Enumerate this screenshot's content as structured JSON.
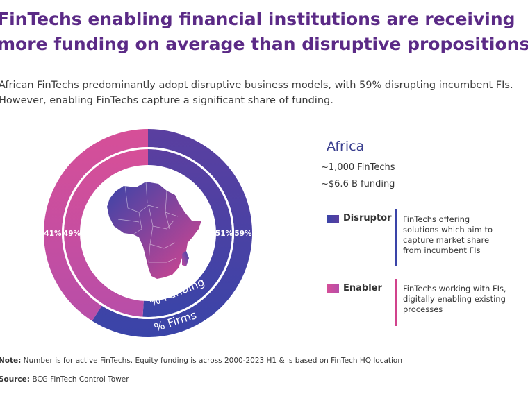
{
  "title_line1": "FinTechs enabling financial institutions are receiving",
  "title_line2": "more funding on average than disruptive propositions",
  "subtitle_line1": "African FinTechs predominantly adopt disruptive business models, with 59% disrupting incumbent FIs.",
  "subtitle_line2": "However, enabling FinTechs capture a significant share of funding.",
  "colors": {
    "title": "#5b2a86",
    "disruptor": "#3b3fa6",
    "enabler": "#d1438c",
    "disruptor_mid": "#6a3f9f"
  },
  "chart_data": {
    "type": "donut",
    "rings": [
      {
        "name": "% Firms",
        "ring": "outer",
        "slices": [
          {
            "series": "Disruptor",
            "value": 59,
            "label": "59%"
          },
          {
            "series": "Enabler",
            "value": 41,
            "label": "41%"
          }
        ]
      },
      {
        "name": "% Funding",
        "ring": "inner",
        "slices": [
          {
            "series": "Disruptor",
            "value": 51,
            "label": "51%"
          },
          {
            "series": "Enabler",
            "value": 49,
            "label": "49%"
          }
        ]
      }
    ],
    "center": "map-of-africa",
    "legend_placement": "right"
  },
  "legend": {
    "heading": "Africa",
    "stat1": "~1,000 FinTechs",
    "stat2": "~$6.6 B funding",
    "items": [
      {
        "name": "Disruptor",
        "description": "FinTechs offering solutions which aim to capture market share from incumbent FIs"
      },
      {
        "name": "Enabler",
        "description": "FinTechs working with FIs, digitally enabling existing processes"
      }
    ]
  },
  "footer": {
    "note_label": "Note:",
    "note_text": " Number is for active FinTechs. Equity funding is across 2000-2023 H1 & is based on FinTech HQ location",
    "source_label": "Source:",
    "source_text": " BCG FinTech Control Tower"
  }
}
